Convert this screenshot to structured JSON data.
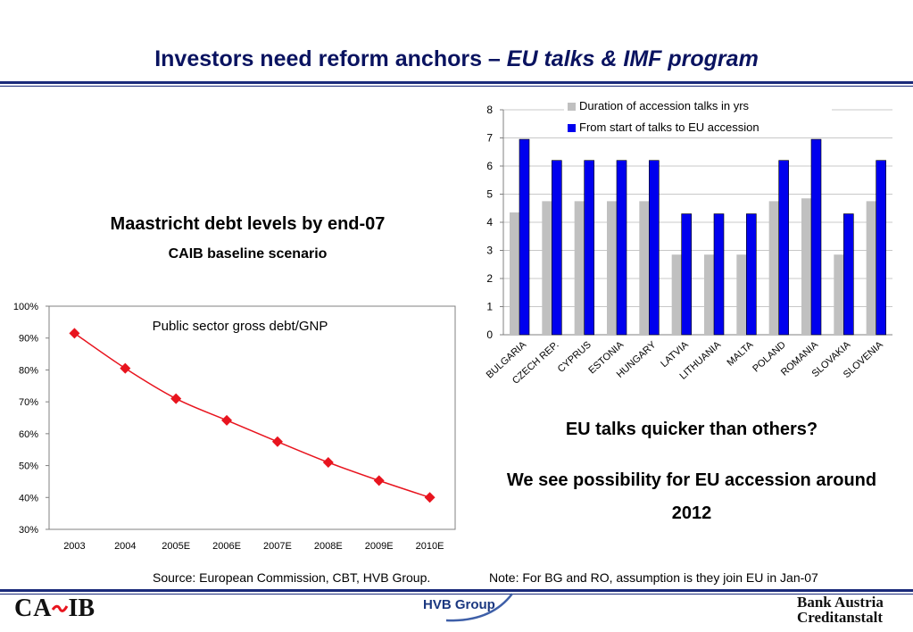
{
  "title": {
    "main": "Investors need reform anchors – ",
    "italic": "EU talks & IMF program"
  },
  "left": {
    "heading": "Maastricht debt levels by end-07",
    "subheading": "CAIB baseline scenario"
  },
  "right": {
    "question": "EU talks quicker than others?",
    "statement": "We see possibility for EU accession around 2012"
  },
  "footer": {
    "source": "Source: European Commission, CBT, HVB Group.",
    "note": "Note: For BG and RO, assumption is they join EU in Jan-07"
  },
  "logos": {
    "caib": "CA IB",
    "hvb": "HVB Group",
    "ba1": "Bank Austria",
    "ba2": "Creditanstalt"
  },
  "colors": {
    "title": "#0a1360",
    "line": "#e8141e",
    "bar_gray": "#c0c0c0",
    "bar_blue": "#0000ee"
  },
  "chart_data": [
    {
      "type": "line",
      "title": "Public sector gross debt/GNP",
      "categories": [
        "2003",
        "2004",
        "2005E",
        "2006E",
        "2007E",
        "2008E",
        "2009E",
        "2010E"
      ],
      "series": [
        {
          "name": "",
          "values": [
            91.5,
            80.5,
            71,
            64.2,
            57.5,
            51,
            45.3,
            40
          ]
        }
      ],
      "yticks": [
        "30%",
        "40%",
        "50%",
        "60%",
        "70%",
        "80%",
        "90%",
        "100%"
      ],
      "ylim": [
        30,
        100
      ],
      "grid": false
    },
    {
      "type": "bar",
      "categories": [
        "BULGARIA",
        "CZECH REP.",
        "CYPRUS",
        "ESTONIA",
        "HUNGARY",
        "LATVIA",
        "LITHUANIA",
        "MALTA",
        "POLAND",
        "ROMANIA",
        "SLOVAKIA",
        "SLOVENIA"
      ],
      "series": [
        {
          "name": "Duration of accession talks in yrs",
          "values": [
            4.35,
            4.75,
            4.75,
            4.75,
            4.75,
            2.85,
            2.85,
            2.85,
            4.75,
            4.85,
            2.85,
            4.75
          ]
        },
        {
          "name": "From start of talks to EU accession",
          "values": [
            6.95,
            6.2,
            6.2,
            6.2,
            6.2,
            4.3,
            4.3,
            4.3,
            6.2,
            6.95,
            4.3,
            6.2
          ]
        }
      ],
      "yticks": [
        "0",
        "1",
        "2",
        "3",
        "4",
        "5",
        "6",
        "7",
        "8"
      ],
      "ylim": [
        0,
        8
      ],
      "grid": true,
      "legend": "top"
    }
  ]
}
